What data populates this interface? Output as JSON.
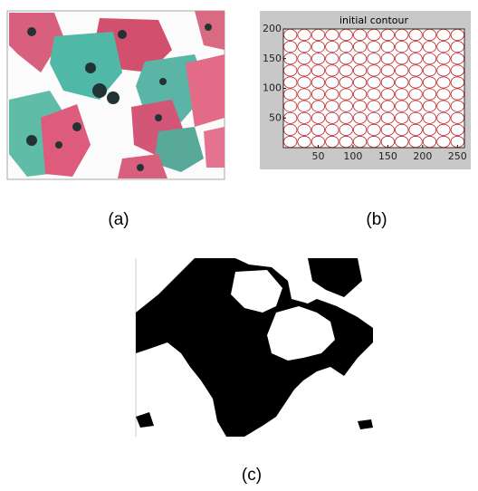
{
  "figure": {
    "panel_a": {
      "label": "(a)"
    },
    "panel_b": {
      "label": "(b)",
      "title": "initial contour",
      "xlim": [
        0,
        260
      ],
      "ylim": [
        0,
        200
      ],
      "xticks": [
        50,
        100,
        150,
        200,
        250
      ],
      "yticks": [
        50,
        100,
        150,
        200
      ]
    },
    "panel_c": {
      "label": "(c)"
    }
  }
}
